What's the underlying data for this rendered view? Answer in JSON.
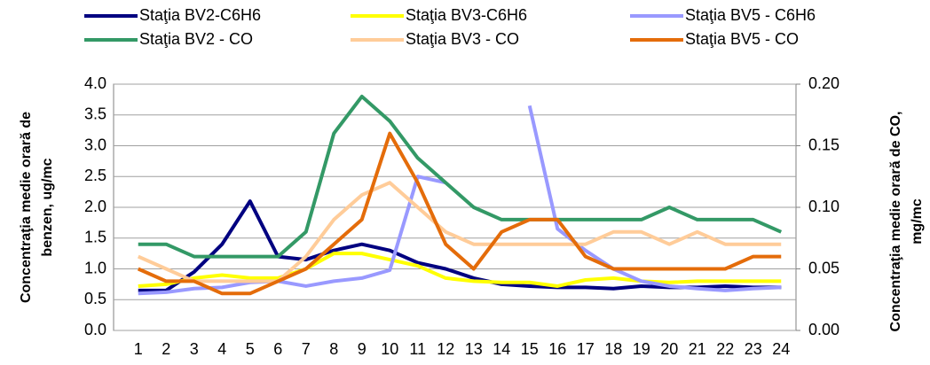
{
  "chart_data": {
    "type": "line",
    "y_label": [
      "Concentraţia medie orară de",
      "benzen, ug/mc"
    ],
    "y2_label": [
      "Concentraţia medie orară de CO,",
      "mg/mc"
    ],
    "categories": [
      "1",
      "2",
      "3",
      "4",
      "5",
      "6",
      "7",
      "8",
      "9",
      "10",
      "11",
      "12",
      "13",
      "14",
      "15",
      "16",
      "17",
      "18",
      "19",
      "20",
      "21",
      "22",
      "23",
      "24"
    ],
    "series": [
      {
        "name": "Staţia BV2-C6H6",
        "color": "#000080",
        "values": [
          0.65,
          0.65,
          0.95,
          1.4,
          2.1,
          1.2,
          1.15,
          1.3,
          1.4,
          1.3,
          1.1,
          1.0,
          0.85,
          0.75,
          0.72,
          0.7,
          0.7,
          0.68,
          0.72,
          0.7,
          0.7,
          0.72,
          0.7,
          0.7
        ]
      },
      {
        "name": "Staţia BV3-C6H6",
        "color": "#ffff00",
        "values": [
          0.72,
          0.75,
          0.85,
          0.9,
          0.85,
          0.85,
          1.0,
          1.25,
          1.25,
          1.15,
          1.05,
          0.85,
          0.8,
          0.78,
          0.78,
          0.72,
          0.82,
          0.85,
          0.8,
          0.78,
          0.8,
          0.8,
          0.8,
          0.8
        ]
      },
      {
        "name": "Staţia BV5 - C6H6",
        "color": "#9999ff",
        "values": [
          0.6,
          0.62,
          0.68,
          0.7,
          0.78,
          0.8,
          0.72,
          0.8,
          0.85,
          0.98,
          2.5,
          2.4,
          null,
          null,
          3.65,
          1.65,
          1.3,
          1.0,
          0.8,
          0.72,
          0.68,
          0.65,
          0.68,
          0.7
        ]
      },
      {
        "name": "Staţia BV2 - CO",
        "color": "#339966",
        "axis": "y2",
        "values": [
          0.07,
          0.07,
          0.06,
          0.06,
          0.06,
          0.06,
          0.08,
          0.16,
          0.19,
          0.17,
          0.14,
          0.12,
          0.1,
          0.09,
          0.09,
          0.09,
          0.09,
          0.09,
          0.09,
          0.1,
          0.09,
          0.09,
          0.09,
          0.08
        ]
      },
      {
        "name": "Staţia BV3 - CO",
        "color": "#ffcc99",
        "axis": "y2",
        "values": [
          0.06,
          0.05,
          0.04,
          0.04,
          0.04,
          0.04,
          0.06,
          0.09,
          0.11,
          0.12,
          0.1,
          0.08,
          0.07,
          0.07,
          0.07,
          0.07,
          0.07,
          0.08,
          0.08,
          0.07,
          0.08,
          0.07,
          0.07,
          0.07
        ]
      },
      {
        "name": "Staţia BV5 - CO",
        "color": "#e46c0a",
        "axis": "y2",
        "values": [
          0.05,
          0.04,
          0.04,
          0.03,
          0.03,
          0.04,
          0.05,
          0.07,
          0.09,
          0.16,
          0.12,
          0.07,
          0.05,
          0.08,
          0.09,
          0.09,
          0.06,
          0.05,
          0.05,
          0.05,
          0.05,
          0.05,
          0.06,
          0.06
        ]
      }
    ],
    "ylim": [
      0,
      4
    ],
    "yticks": [
      {
        "value": 0,
        "label": "0.0"
      },
      {
        "value": 0.5,
        "label": "0.5"
      },
      {
        "value": 1,
        "label": "1.0"
      },
      {
        "value": 1.5,
        "label": "1.5"
      },
      {
        "value": 2,
        "label": "2.0"
      },
      {
        "value": 2.5,
        "label": "2.5"
      },
      {
        "value": 3,
        "label": "3.0"
      },
      {
        "value": 3.5,
        "label": "3.5"
      },
      {
        "value": 4,
        "label": "4.0"
      }
    ],
    "y2lim": [
      0,
      0.2
    ],
    "y2ticks": [
      {
        "value": 0,
        "label": "0.00"
      },
      {
        "value": 0.05,
        "label": "0.05"
      },
      {
        "value": 0.1,
        "label": "0.10"
      },
      {
        "value": 0.15,
        "label": "0.15"
      },
      {
        "value": 0.2,
        "label": "0.20"
      }
    ],
    "grid": true
  }
}
